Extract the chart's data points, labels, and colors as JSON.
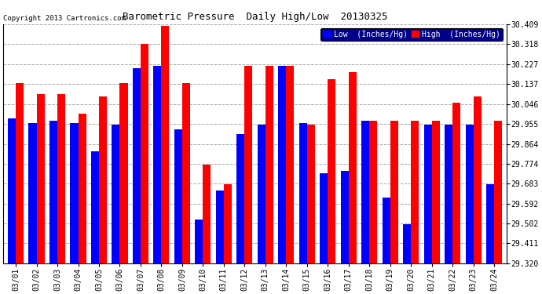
{
  "title": "Barometric Pressure  Daily High/Low  20130325",
  "copyright": "Copyright 2013 Cartronics.com",
  "legend_low": "Low  (Inches/Hg)",
  "legend_high": "High  (Inches/Hg)",
  "dates": [
    "03/01",
    "03/02",
    "03/03",
    "03/04",
    "03/05",
    "03/06",
    "03/07",
    "03/08",
    "03/09",
    "03/10",
    "03/11",
    "03/12",
    "03/13",
    "03/14",
    "03/15",
    "03/16",
    "03/17",
    "03/18",
    "03/19",
    "03/20",
    "03/21",
    "03/22",
    "03/23",
    "03/24"
  ],
  "low_values": [
    29.98,
    29.96,
    29.97,
    29.96,
    29.83,
    29.95,
    30.21,
    30.22,
    29.93,
    29.52,
    29.65,
    29.91,
    29.95,
    30.22,
    29.96,
    29.73,
    29.74,
    29.97,
    29.62,
    29.5,
    29.95,
    29.95,
    29.95,
    29.68
  ],
  "high_values": [
    30.14,
    30.09,
    30.09,
    30.0,
    30.08,
    30.14,
    30.32,
    30.4,
    30.14,
    29.77,
    29.68,
    30.22,
    30.22,
    30.22,
    29.95,
    30.16,
    30.19,
    29.97,
    29.97,
    29.97,
    29.97,
    30.05,
    30.08,
    29.97
  ],
  "ylim_min": 29.32,
  "ylim_max": 30.409,
  "yticks": [
    29.32,
    29.411,
    29.502,
    29.592,
    29.683,
    29.774,
    29.864,
    29.955,
    30.046,
    30.137,
    30.227,
    30.318,
    30.409
  ],
  "bar_color_low": "#0000ff",
  "bar_color_high": "#ff0000",
  "background_color": "#ffffff",
  "grid_color": "#aaaaaa",
  "title_fontsize": 9,
  "tick_fontsize": 7,
  "bar_width": 0.38
}
